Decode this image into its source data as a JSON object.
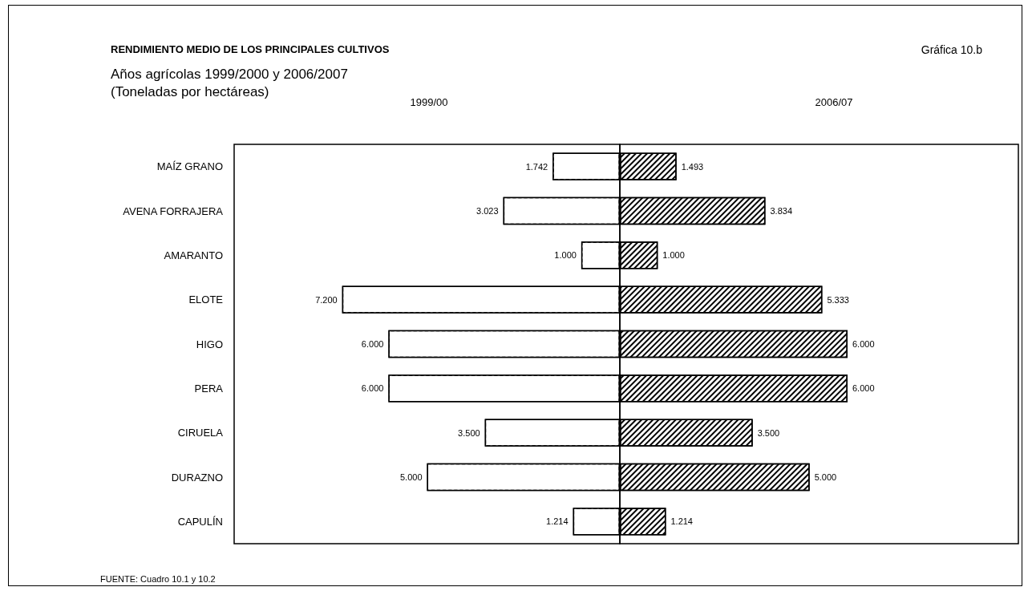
{
  "chart_data": [
    {
      "type": "bar",
      "orientation": "horizontal",
      "title": "RENDIMIENTO MEDIO DE LOS PRINCIPALES CULTIVOS",
      "subtitle": "Años agrícolas 1999/2000 y 2006/2007\n(Toneladas por hectáreas)",
      "annotations": [
        "Gráfica 10.b",
        "FUENTE: Cuadro 10.1 y 10.2"
      ],
      "categories": [
        "MAÍZ GRANO",
        "AVENA FORRAJERA",
        "AMARANTO",
        "ELOTE",
        "HIGO",
        "PERA",
        "CIRUELA",
        "DURAZNO",
        "CAPULÍN"
      ],
      "xlim": [
        10,
        0
      ],
      "tick_labels": "y",
      "grid": false,
      "series": [
        {
          "name": "1999/00",
          "color": "#ffffff",
          "values": [
            1.742,
            3.023,
            1.0,
            7.2,
            6.0,
            6.0,
            3.5,
            5.0,
            1.214
          ],
          "value_labels": [
            "1.742",
            "3.023",
            "1.000",
            "7.200",
            "6.000",
            "6.000",
            "3.500",
            "5.000",
            "1.214"
          ]
        }
      ]
    },
    {
      "type": "bar",
      "orientation": "horizontal",
      "categories": [
        null,
        null,
        null,
        null,
        null,
        null,
        null,
        null,
        null
      ],
      "xlim": [
        0,
        10.5
      ],
      "tick_labels": false,
      "grid": false,
      "series": [
        {
          "name": "2006/07",
          "color": "#000000",
          "values": [
            1.493,
            3.834,
            1.0,
            5.333,
            6.0,
            6.0,
            3.5,
            5.0,
            1.214
          ],
          "value_labels": [
            "1.493",
            "3.834",
            "1.000",
            "5.333",
            "6.000",
            "6.000",
            "3.500",
            "5.000",
            "1.214"
          ]
        }
      ]
    }
  ]
}
